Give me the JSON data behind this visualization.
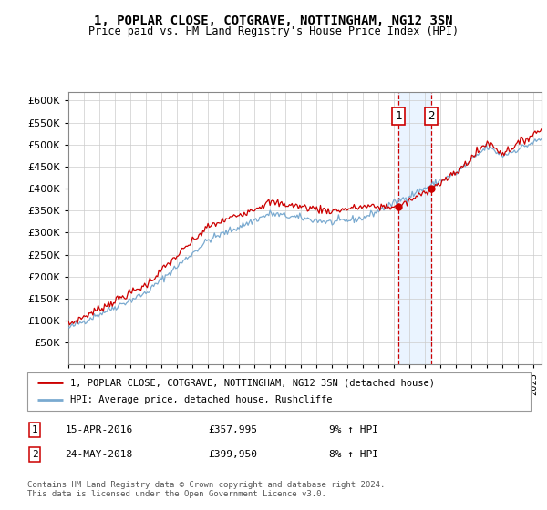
{
  "title": "1, POPLAR CLOSE, COTGRAVE, NOTTINGHAM, NG12 3SN",
  "subtitle": "Price paid vs. HM Land Registry's House Price Index (HPI)",
  "legend_line1": "1, POPLAR CLOSE, COTGRAVE, NOTTINGHAM, NG12 3SN (detached house)",
  "legend_line2": "HPI: Average price, detached house, Rushcliffe",
  "sale1_date": "15-APR-2016",
  "sale1_price": "£357,995",
  "sale1_note": "9% ↑ HPI",
  "sale2_date": "24-MAY-2018",
  "sale2_price": "£399,950",
  "sale2_note": "8% ↑ HPI",
  "footer": "Contains HM Land Registry data © Crown copyright and database right 2024.\nThis data is licensed under the Open Government Licence v3.0.",
  "sale1_x": 2016.29,
  "sale2_x": 2018.39,
  "sale1_y": 357995,
  "sale2_y": 399950,
  "ylim": [
    0,
    620000
  ],
  "xlim_start": 1995.0,
  "xlim_end": 2025.5,
  "yticks": [
    50000,
    100000,
    150000,
    200000,
    250000,
    300000,
    350000,
    400000,
    450000,
    500000,
    550000,
    600000
  ],
  "red_color": "#cc0000",
  "blue_color": "#7aaad0",
  "shade_color": "#ddeeff"
}
